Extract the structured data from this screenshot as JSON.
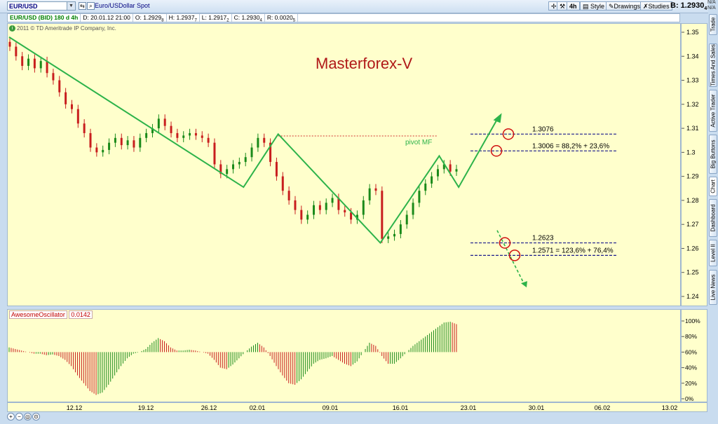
{
  "toolbar": {
    "symbol": "EUR/USD",
    "description": "Euro/USDollar Spot",
    "timeframe": "4h",
    "style_label": "Style",
    "drawings_label": "Drawings",
    "studies_label": "Studies",
    "bid": "B: 1.2930",
    "bid_sub": "4",
    "na1": "N/A",
    "na2": "N/A"
  },
  "infobar": {
    "tag": "EUR/USD (BID) 180 d 4h",
    "date": "D: 20.01.12 21:00",
    "open": "O: 1.2929",
    "open_sub": "8",
    "high": "H: 1.2937",
    "high_sub": "7",
    "low": "L: 1.2917",
    "low_sub": "2",
    "close": "C: 1.2930",
    "close_sub": "4",
    "range": "R: 0.0020",
    "range_sub": "5"
  },
  "chart": {
    "copyright": "2011 © TD Ameritrade IP Company, Inc.",
    "title": "Masterforex-V",
    "pivot_label": "pivot MF",
    "target_up_1": "1.3076",
    "target_up_2": "1.3006 = 88,2% + 23,6%",
    "target_dn_1": "1.2623",
    "target_dn_2": "1.2571 = 123,6% + 76,4%",
    "y_ticks": [
      "1.35",
      "1.34",
      "1.33",
      "1.32",
      "1.31",
      "1.3",
      "1.29",
      "1.28",
      "1.27",
      "1.26",
      "1.25",
      "1.24"
    ],
    "x_ticks": [
      "12.12",
      "19.12",
      "26.12",
      "02.01",
      "09.01",
      "16.01",
      "23.01",
      "30.01",
      "06.02",
      "13.02"
    ]
  },
  "oscillator": {
    "name": "AwesomeOscillator",
    "value": "0.0142",
    "y_ticks": [
      "100%",
      "80%",
      "60%",
      "40%",
      "20%",
      "0%"
    ]
  },
  "side_tabs": [
    "Trade",
    "Times And Sales",
    "Active Trader",
    "Big Buttons",
    "Chart",
    "Dashboard",
    "Level II",
    "Live News"
  ],
  "colors": {
    "bull": "#1a8a1a",
    "bear": "#c81e1e",
    "pattern": "#2db34a",
    "annotation": "#1a1a8c",
    "circle": "#d01010",
    "title": "#b01818",
    "background": "#ffffcc"
  },
  "chart_data": {
    "type": "candlestick",
    "title": "Masterforex-V",
    "ylim": [
      1.235,
      1.355
    ],
    "pattern_points": [
      {
        "x": "08.12",
        "y": 1.348
      },
      {
        "x": "31.12",
        "y": 1.2855
      },
      {
        "x": "04.01",
        "y": 1.3076
      },
      {
        "x": "14.01",
        "y": 1.2623
      },
      {
        "x": "20.01",
        "y": 1.2985
      },
      {
        "x": "22.01",
        "y": 1.2855
      },
      {
        "x": "26.01",
        "y": 1.314
      }
    ],
    "levels": [
      1.3076,
      1.3006,
      1.2623,
      1.2571
    ],
    "pivot": 1.3068,
    "close": [
      1.344,
      1.34,
      1.336,
      1.339,
      1.335,
      1.338,
      1.333,
      1.33,
      1.325,
      1.32,
      1.318,
      1.312,
      1.308,
      1.302,
      1.3,
      1.301,
      1.304,
      1.306,
      1.303,
      1.305,
      1.302,
      1.306,
      1.308,
      1.31,
      1.314,
      1.311,
      1.308,
      1.306,
      1.307,
      1.308,
      1.307,
      1.306,
      1.304,
      1.295,
      1.291,
      1.293,
      1.295,
      1.296,
      1.298,
      1.302,
      1.306,
      1.304,
      1.296,
      1.29,
      1.284,
      1.28,
      1.276,
      1.272,
      1.274,
      1.278,
      1.276,
      1.279,
      1.281,
      1.276,
      1.275,
      1.272,
      1.274,
      1.28,
      1.285,
      1.284,
      1.264,
      1.265,
      1.266,
      1.27,
      1.274,
      1.279,
      1.284,
      1.287,
      1.29,
      1.293,
      1.295,
      1.292,
      1.293
    ],
    "oscillator": [
      0.66,
      0.64,
      0.62,
      0.6,
      0.58,
      0.58,
      0.56,
      0.57,
      0.55,
      0.5,
      0.42,
      0.3,
      0.2,
      0.1,
      0.05,
      0.08,
      0.18,
      0.3,
      0.42,
      0.52,
      0.58,
      0.6,
      0.64,
      0.72,
      0.78,
      0.74,
      0.66,
      0.62,
      0.62,
      0.63,
      0.62,
      0.6,
      0.58,
      0.5,
      0.4,
      0.38,
      0.44,
      0.52,
      0.6,
      0.67,
      0.72,
      0.66,
      0.55,
      0.42,
      0.3,
      0.2,
      0.18,
      0.25,
      0.35,
      0.45,
      0.5,
      0.52,
      0.55,
      0.5,
      0.45,
      0.42,
      0.48,
      0.6,
      0.72,
      0.68,
      0.55,
      0.45,
      0.45,
      0.52,
      0.6,
      0.68,
      0.74,
      0.8,
      0.86,
      0.92,
      0.98,
      0.99,
      0.96
    ]
  }
}
